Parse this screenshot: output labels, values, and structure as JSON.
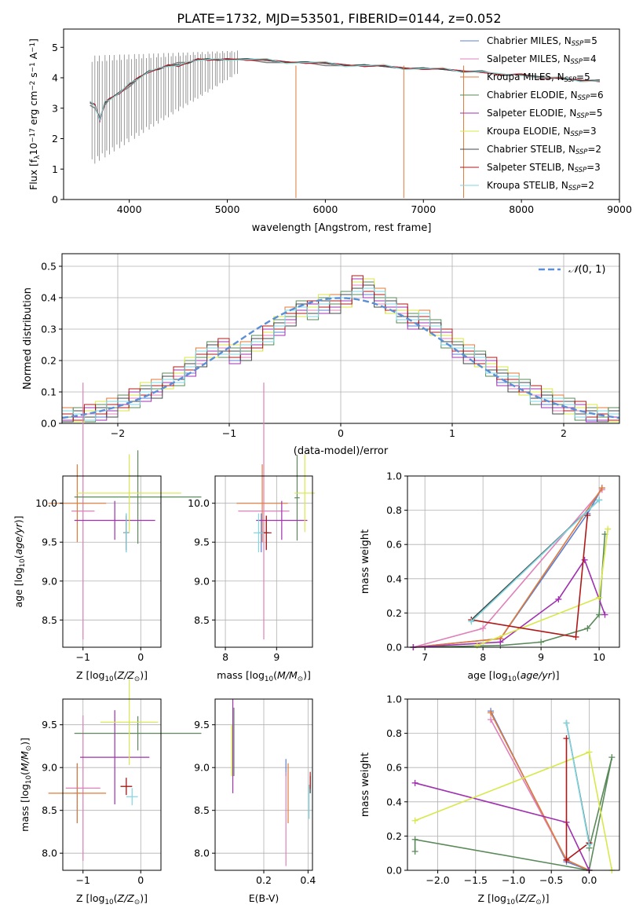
{
  "figure_title": "PLATE=1732, MJD=53501, FIBERID=0144, z=0.052",
  "series": [
    {
      "name": "Chabrier MILES, N$_{SSP}$=5",
      "label_main": "Chabrier MILES, N",
      "label_sub": "SSP",
      "label_tail": "=5",
      "color": "#5b7fd6"
    },
    {
      "name": "Salpeter MILES, N$_{SSP}$=4",
      "label_main": "Salpeter MILES, N",
      "label_sub": "SSP",
      "label_tail": "=4",
      "color": "#e080b8"
    },
    {
      "name": "Kroupa MILES, N$_{SSP}$=5",
      "label_main": "Kroupa MILES, N",
      "label_sub": "SSP",
      "label_tail": "=5",
      "color": "#e07a3a"
    },
    {
      "name": "Chabrier ELODIE, N$_{SSP}$=6",
      "label_main": "Chabrier ELODIE, N",
      "label_sub": "SSP",
      "label_tail": "=6",
      "color": "#5a8a5a"
    },
    {
      "name": "Salpeter ELODIE, N$_{SSP}$=5",
      "label_main": "Salpeter ELODIE, N",
      "label_sub": "SSP",
      "label_tail": "=5",
      "color": "#a030b0"
    },
    {
      "name": "Kroupa ELODIE, N$_{SSP}$=3",
      "label_main": "Kroupa ELODIE, N",
      "label_sub": "SSP",
      "label_tail": "=3",
      "color": "#d8e84a"
    },
    {
      "name": "Chabrier STELIB, N$_{SSP}$=2",
      "label_main": "Chabrier STELIB, N",
      "label_sub": "SSP",
      "label_tail": "=2",
      "color": "#404848"
    },
    {
      "name": "Salpeter STELIB, N$_{SSP}$=3",
      "label_main": "Salpeter STELIB, N",
      "label_sub": "SSP",
      "label_tail": "=3",
      "color": "#b01818"
    },
    {
      "name": "Kroupa STELIB, N$_{SSP}$=2",
      "label_main": "Kroupa STELIB, N",
      "label_sub": "SSP",
      "label_tail": "=2",
      "color": "#7fd6e0"
    }
  ],
  "chart_data": [
    {
      "id": "spectrum",
      "type": "line",
      "xlabel": "wavelength [Angstrom, rest frame]",
      "ylabel": "Flux [f$_\\lambda$10$^{-17}$ erg cm$^{-2}$ s$^{-1}$ A$^{-1}$]",
      "xlim": [
        3330,
        9000
      ],
      "ylim": [
        0,
        5.6
      ],
      "xticks": [
        4000,
        5000,
        6000,
        7000,
        8000,
        9000
      ],
      "yticks": [
        0,
        1,
        2,
        3,
        4,
        5
      ],
      "grid": false,
      "legend": "right",
      "data_color": "#808080",
      "data_x": [
        3600,
        3650,
        3700,
        3750,
        3800,
        3900,
        4000,
        4100,
        4200,
        4300,
        4400,
        4500,
        4600,
        4700,
        4800,
        4900,
        5000,
        5200,
        5400,
        5600,
        5800,
        6000,
        6200,
        6400,
        6600,
        6800,
        7000,
        7200,
        7400,
        7600,
        7800,
        8000,
        8200,
        8400,
        8600,
        8800
      ],
      "data_y": [
        3.1,
        3.0,
        2.7,
        3.1,
        3.3,
        3.5,
        3.7,
        4.0,
        4.2,
        4.3,
        4.4,
        4.5,
        4.5,
        4.6,
        4.6,
        4.6,
        4.6,
        4.6,
        4.5,
        4.5,
        4.5,
        4.4,
        4.4,
        4.4,
        4.4,
        4.3,
        4.3,
        4.3,
        4.2,
        4.2,
        4.1,
        4.1,
        4.0,
        4.0,
        3.9,
        3.9
      ],
      "model_x": [
        3600,
        3650,
        3700,
        3750,
        3800,
        3900,
        4000,
        4100,
        4200,
        4300,
        4400,
        4500,
        4600,
        4700,
        4800,
        4900,
        5000,
        5200,
        5400,
        5600,
        5800,
        6000,
        6200,
        6400,
        6600,
        6800,
        7000,
        7200,
        7400,
        7600,
        7800,
        8000,
        8200,
        8400,
        8600,
        8800
      ],
      "model_y": [
        3.2,
        3.1,
        2.6,
        3.2,
        3.3,
        3.5,
        3.8,
        4.0,
        4.2,
        4.3,
        4.4,
        4.4,
        4.5,
        4.6,
        4.6,
        4.6,
        4.6,
        4.6,
        4.6,
        4.5,
        4.5,
        4.5,
        4.4,
        4.4,
        4.4,
        4.3,
        4.3,
        4.3,
        4.2,
        4.2,
        4.1,
        4.1,
        4.0,
        4.0,
        3.9,
        3.9
      ]
    },
    {
      "id": "residuals",
      "type": "bar",
      "xlabel": "(data-model)/error",
      "ylabel": "Normed distribution",
      "xlim": [
        -2.5,
        2.5
      ],
      "ylim": [
        0,
        0.54
      ],
      "xticks": [
        -2,
        -1,
        0,
        1,
        2
      ],
      "yticks": [
        0.0,
        0.1,
        0.2,
        0.3,
        0.4,
        0.5
      ],
      "grid": true,
      "legend": "top-right",
      "reference_label": "$\\mathcal{N}(0,1)$",
      "reference_label_text": "(0, 1)",
      "reference_color": "#5b8fd6",
      "bin_width": 0.1,
      "bin_centers": [
        -2.45,
        -2.35,
        -2.25,
        -2.15,
        -2.05,
        -1.95,
        -1.85,
        -1.75,
        -1.65,
        -1.55,
        -1.45,
        -1.35,
        -1.25,
        -1.15,
        -1.05,
        -0.95,
        -0.85,
        -0.75,
        -0.65,
        -0.55,
        -0.45,
        -0.35,
        -0.25,
        -0.15,
        -0.05,
        0.05,
        0.15,
        0.25,
        0.35,
        0.45,
        0.55,
        0.65,
        0.75,
        0.85,
        0.95,
        1.05,
        1.15,
        1.25,
        1.35,
        1.45,
        1.55,
        1.65,
        1.75,
        1.85,
        1.95,
        2.05,
        2.15,
        2.25,
        2.35,
        2.45
      ],
      "values": [
        0.02,
        0.02,
        0.03,
        0.04,
        0.05,
        0.06,
        0.08,
        0.1,
        0.11,
        0.13,
        0.15,
        0.18,
        0.21,
        0.23,
        0.24,
        0.22,
        0.23,
        0.25,
        0.28,
        0.31,
        0.34,
        0.36,
        0.36,
        0.38,
        0.38,
        0.39,
        0.44,
        0.43,
        0.4,
        0.37,
        0.35,
        0.33,
        0.33,
        0.3,
        0.27,
        0.24,
        0.22,
        0.2,
        0.18,
        0.15,
        0.13,
        0.11,
        0.09,
        0.08,
        0.06,
        0.05,
        0.04,
        0.03,
        0.02,
        0.02
      ],
      "jitter": [
        [
          0.01,
          -0.02,
          0.03,
          0.0,
          -0.01,
          0.02,
          -0.03,
          0.01,
          0.02
        ],
        [
          -0.01,
          0.02,
          -0.02,
          0.03,
          0.0,
          -0.02,
          0.02,
          -0.01,
          0.01
        ],
        [
          0.02,
          0.0,
          0.01,
          -0.03,
          0.02,
          0.01,
          -0.01,
          0.03,
          -0.02
        ],
        [
          -0.02,
          0.01,
          0.0,
          0.02,
          -0.03,
          0.03,
          0.01,
          -0.01,
          0.0
        ]
      ]
    },
    {
      "id": "age_vs_Z",
      "type": "scatter",
      "xlabel": "Z [log$_{10}$($Z/Z_\\odot$)]",
      "ylabel": "age  [log$_{10}$($age/yr$)]",
      "xlim": [
        -1.35,
        0.35
      ],
      "ylim": [
        8.15,
        10.35
      ],
      "xticks": [
        -1,
        0
      ],
      "yticks": [
        8.5,
        9.0,
        9.5,
        10.0
      ],
      "grid": true,
      "points": [
        {
          "series": 0,
          "x": -0.25,
          "xerr": 0.05,
          "y": 9.62,
          "yerr": 0.25
        },
        {
          "series": 1,
          "x": -1.0,
          "xerr": 0.2,
          "y": 9.9,
          "yerr": 1.65
        },
        {
          "series": 2,
          "x": -1.1,
          "xerr": 0.5,
          "y": 10.0,
          "yerr": 0.5
        },
        {
          "series": 3,
          "x": -0.05,
          "xerr": 1.1,
          "y": 10.08,
          "yerr": 0.6
        },
        {
          "series": 4,
          "x": -0.45,
          "xerr": 0.7,
          "y": 9.78,
          "yerr": 0.25
        },
        {
          "series": 5,
          "x": -0.2,
          "xerr": 0.9,
          "y": 10.13,
          "yerr": 0.5
        },
        {
          "series": 6,
          "x": -0.25,
          "xerr": 0.05,
          "y": 9.62,
          "yerr": 0.22
        },
        {
          "series": 7,
          "x": -0.25,
          "xerr": 0.05,
          "y": 9.62,
          "yerr": 0.22
        },
        {
          "series": 8,
          "x": -0.25,
          "xerr": 0.05,
          "y": 9.62,
          "yerr": 0.25
        }
      ]
    },
    {
      "id": "age_vs_mass",
      "type": "scatter",
      "xlabel": "mass [log$_{10}$($M/M_\\odot$)]",
      "ylabel": "",
      "xlim": [
        7.8,
        9.7
      ],
      "ylim": [
        8.15,
        10.35
      ],
      "xticks": [
        8,
        9
      ],
      "yticks": [
        8.5,
        9.0,
        9.5,
        10.0
      ],
      "grid": true,
      "points": [
        {
          "series": 0,
          "x": 8.7,
          "xerr": 0.05,
          "y": 9.62,
          "yerr": 0.25
        },
        {
          "series": 1,
          "x": 8.75,
          "xerr": 0.5,
          "y": 9.9,
          "yerr": 1.65
        },
        {
          "series": 2,
          "x": 8.72,
          "xerr": 0.5,
          "y": 10.0,
          "yerr": 0.5
        },
        {
          "series": 3,
          "x": 9.4,
          "xerr": 0.05,
          "y": 10.07,
          "yerr": 0.55
        },
        {
          "series": 4,
          "x": 9.1,
          "xerr": 0.5,
          "y": 9.78,
          "yerr": 0.25
        },
        {
          "series": 5,
          "x": 9.55,
          "xerr": 0.2,
          "y": 10.13,
          "yerr": 0.5
        },
        {
          "series": 6,
          "x": 8.8,
          "xerr": 0.05,
          "y": 9.62,
          "yerr": 0.22
        },
        {
          "series": 7,
          "x": 8.8,
          "xerr": 0.1,
          "y": 9.62,
          "yerr": 0.22
        },
        {
          "series": 8,
          "x": 8.65,
          "xerr": 0.1,
          "y": 9.62,
          "yerr": 0.25
        }
      ]
    },
    {
      "id": "massweight_vs_age",
      "type": "line",
      "xlabel": "age  [log$_{10}$($age/yr$)]",
      "ylabel": "mass weight",
      "xlim": [
        6.7,
        10.35
      ],
      "ylim": [
        0,
        1.0
      ],
      "xticks": [
        7,
        8,
        9,
        10
      ],
      "yticks": [
        0.0,
        0.2,
        0.4,
        0.6,
        0.8,
        1.0
      ],
      "grid": true,
      "lines": [
        {
          "series": 0,
          "x": [
            6.8,
            8.3,
            9.8,
            10.05
          ],
          "y": [
            0.0,
            0.05,
            0.78,
            0.93
          ]
        },
        {
          "series": 1,
          "x": [
            6.8,
            8.0,
            10.05
          ],
          "y": [
            0.0,
            0.11,
            0.92
          ]
        },
        {
          "series": 2,
          "x": [
            6.8,
            8.3,
            10.05
          ],
          "y": [
            0.0,
            0.05,
            0.93
          ]
        },
        {
          "series": 3,
          "x": [
            6.8,
            8.3,
            9.0,
            9.8,
            10.0,
            10.1
          ],
          "y": [
            0.0,
            0.01,
            0.03,
            0.11,
            0.19,
            0.66
          ]
        },
        {
          "series": 4,
          "x": [
            6.8,
            8.3,
            9.3,
            9.75,
            10.1
          ],
          "y": [
            0.0,
            0.03,
            0.28,
            0.51,
            0.19
          ]
        },
        {
          "series": 5,
          "x": [
            7.9,
            10.0,
            10.15
          ],
          "y": [
            0.01,
            0.29,
            0.69
          ]
        },
        {
          "series": 6,
          "x": [
            7.8,
            10.0
          ],
          "y": [
            0.16,
            0.86
          ]
        },
        {
          "series": 7,
          "x": [
            7.8,
            9.6,
            9.8
          ],
          "y": [
            0.16,
            0.06,
            0.77
          ]
        },
        {
          "series": 8,
          "x": [
            7.8,
            10.0
          ],
          "y": [
            0.15,
            0.86
          ]
        }
      ]
    },
    {
      "id": "mass_vs_Z",
      "type": "scatter",
      "xlabel": "Z [log$_{10}$($Z/Z_\\odot$)]",
      "ylabel": "mass [log$_{10}$($M/M_\\odot$)]",
      "xlim": [
        -1.35,
        0.35
      ],
      "ylim": [
        7.8,
        9.8
      ],
      "xticks": [
        -1,
        0
      ],
      "yticks": [
        8.0,
        8.5,
        9.0,
        9.5
      ],
      "grid": true,
      "points": [
        {
          "series": 0,
          "x": -1.1,
          "xerr": 0.05,
          "y": 8.7,
          "yerr": 0.35
        },
        {
          "series": 1,
          "x": -1.0,
          "xerr": 0.3,
          "y": 8.76,
          "yerr": 0.85
        },
        {
          "series": 2,
          "x": -1.1,
          "xerr": 0.5,
          "y": 8.7,
          "yerr": 0.35
        },
        {
          "series": 3,
          "x": -0.05,
          "xerr": 1.1,
          "y": 9.4,
          "yerr": 0.2
        },
        {
          "series": 4,
          "x": -0.45,
          "xerr": 0.6,
          "y": 9.12,
          "yerr": 0.55
        },
        {
          "series": 5,
          "x": -0.2,
          "xerr": 0.5,
          "y": 9.53,
          "yerr": 0.5
        },
        {
          "series": 6,
          "x": -0.25,
          "xerr": 0.1,
          "y": 8.78,
          "yerr": 0.1
        },
        {
          "series": 7,
          "x": -0.25,
          "xerr": 0.1,
          "y": 8.78,
          "yerr": 0.1
        },
        {
          "series": 8,
          "x": -0.15,
          "xerr": 0.1,
          "y": 8.66,
          "yerr": 0.1
        }
      ]
    },
    {
      "id": "mass_vs_ebv",
      "type": "scatter",
      "xlabel": "E(B-V)",
      "ylabel": "",
      "xlim": [
        -0.02,
        0.42
      ],
      "ylim": [
        7.8,
        9.8
      ],
      "xticks": [
        0.2,
        0.4
      ],
      "yticks": [
        8.0,
        8.5,
        9.0,
        9.5
      ],
      "grid": true,
      "points": [
        {
          "series": 0,
          "x": 0.3,
          "yerr": 0.1,
          "y": 9.0
        },
        {
          "series": 1,
          "x": 0.3,
          "yerr": 0.55,
          "y": 8.4
        },
        {
          "series": 2,
          "x": 0.31,
          "yerr": 0.35,
          "y": 8.7
        },
        {
          "series": 3,
          "x": 0.065,
          "yerr": 0.4,
          "y": 9.3
        },
        {
          "series": 4,
          "x": 0.06,
          "yerr": 0.55,
          "y": 9.25
        },
        {
          "series": 5,
          "x": 0.055,
          "yerr": 0.3,
          "y": 9.2
        },
        {
          "series": 6,
          "x": 0.41,
          "yerr": 0.1,
          "y": 8.8
        },
        {
          "series": 7,
          "x": 0.41,
          "yerr": 0.1,
          "y": 8.85
        },
        {
          "series": 8,
          "x": 0.405,
          "yerr": 0.2,
          "y": 8.6
        }
      ]
    },
    {
      "id": "massweight_vs_Z",
      "type": "line",
      "xlabel": "Z [log$_{10}$($Z/Z_\\odot$)]",
      "ylabel": "mass weight",
      "xlim": [
        -2.4,
        0.4
      ],
      "ylim": [
        0,
        1.0
      ],
      "xticks": [
        -2.0,
        -1.5,
        -1.0,
        -0.5,
        0.0
      ],
      "yticks": [
        0.0,
        0.2,
        0.4,
        0.6,
        0.8,
        1.0
      ],
      "grid": true,
      "lines": [
        {
          "series": 0,
          "x": [
            -1.3,
            -0.3,
            0.0
          ],
          "y": [
            0.93,
            0.05,
            0.0
          ]
        },
        {
          "series": 1,
          "x": [
            -1.3,
            -0.3,
            0.0
          ],
          "y": [
            0.88,
            0.06,
            0.0
          ]
        },
        {
          "series": 2,
          "x": [
            -1.3,
            -0.3,
            0.0
          ],
          "y": [
            0.92,
            0.06,
            0.0
          ]
        },
        {
          "series": 3,
          "x": [
            -2.3,
            -2.3,
            0.0,
            0.3,
            0.0
          ],
          "y": [
            0.11,
            0.18,
            0.0,
            0.66,
            0.13
          ]
        },
        {
          "series": 4,
          "x": [
            -2.3,
            -0.3,
            0.0
          ],
          "y": [
            0.51,
            0.28,
            0.0
          ]
        },
        {
          "series": 5,
          "x": [
            -2.3,
            0.0,
            0.3
          ],
          "y": [
            0.29,
            0.69,
            0.0
          ]
        },
        {
          "series": 6,
          "x": [
            -0.3,
            0.0
          ],
          "y": [
            0.86,
            0.16
          ]
        },
        {
          "series": 7,
          "x": [
            -0.3,
            -0.3,
            0.0
          ],
          "y": [
            0.77,
            0.06,
            0.16
          ]
        },
        {
          "series": 8,
          "x": [
            -0.3,
            0.0
          ],
          "y": [
            0.86,
            0.15
          ]
        }
      ]
    }
  ]
}
